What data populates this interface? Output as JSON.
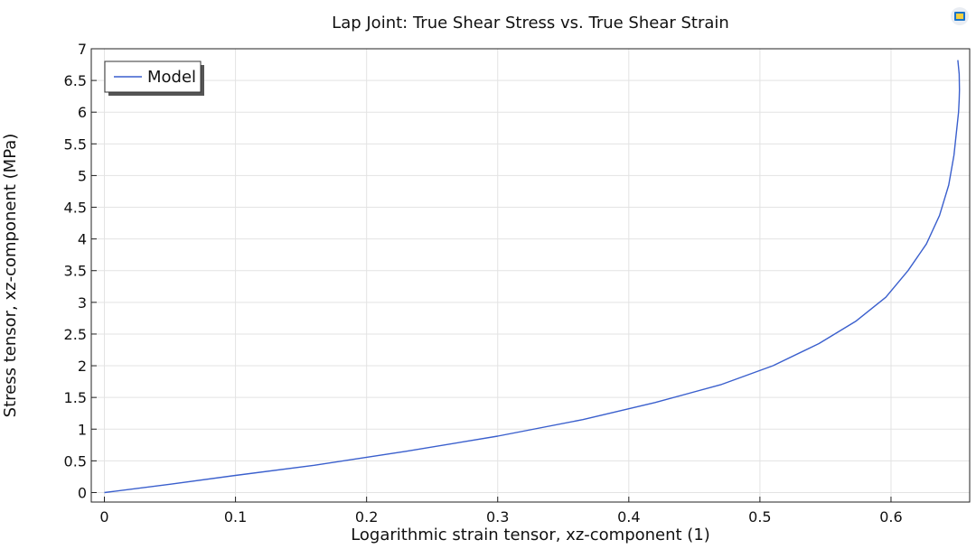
{
  "chart_data": {
    "type": "line",
    "title": "Lap Joint: True Shear Stress vs. True Shear Strain",
    "xlabel": "Logarithmic strain tensor, xz-component (1)",
    "ylabel": "Stress tensor, xz-component (MPa)",
    "xlim": [
      -0.01,
      0.66
    ],
    "ylim": [
      -0.15,
      7.0
    ],
    "xticks": [
      "0",
      "0.1",
      "0.2",
      "0.3",
      "0.4",
      "0.5",
      "0.6"
    ],
    "yticks": [
      "0",
      "0.5",
      "1",
      "1.5",
      "2",
      "2.5",
      "3",
      "3.5",
      "4",
      "4.5",
      "5",
      "5.5",
      "6",
      "6.5",
      "7"
    ],
    "grid": true,
    "legend_position": "top-left",
    "series": [
      {
        "name": "Model",
        "color": "#3a5fcd",
        "x": [
          0,
          0.05,
          0.1,
          0.16,
          0.23,
          0.3,
          0.365,
          0.42,
          0.47,
          0.51,
          0.545,
          0.573,
          0.596,
          0.613,
          0.627,
          0.637,
          0.644,
          0.648,
          0.6505,
          0.6515,
          0.652,
          0.6522,
          0.652,
          0.651
        ],
        "y": [
          0,
          0.13,
          0.27,
          0.43,
          0.65,
          0.89,
          1.15,
          1.42,
          1.7,
          2.0,
          2.35,
          2.7,
          3.08,
          3.5,
          3.92,
          4.37,
          4.85,
          5.32,
          5.8,
          6.0,
          6.2,
          6.35,
          6.6,
          6.82
        ]
      }
    ]
  }
}
